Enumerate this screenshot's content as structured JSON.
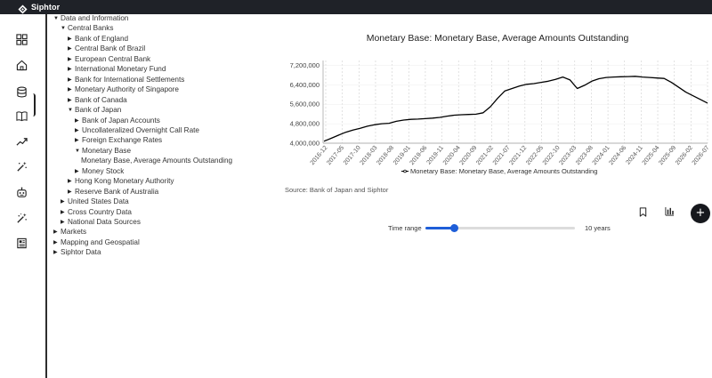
{
  "app": {
    "name": "Siphtor"
  },
  "sidebar": {
    "icons": [
      {
        "name": "dashboard-grid-icon"
      },
      {
        "name": "home-icon"
      },
      {
        "name": "database-icon",
        "active": true
      },
      {
        "name": "book-icon"
      },
      {
        "name": "trending-icon"
      },
      {
        "name": "magic-wand-icon"
      },
      {
        "name": "robot-icon"
      },
      {
        "name": "magic-wand-alt-icon"
      },
      {
        "name": "newspaper-icon"
      }
    ]
  },
  "tree": [
    {
      "label": "Data and Information",
      "level": 0,
      "expanded": true
    },
    {
      "label": "Central Banks",
      "level": 1,
      "expanded": true
    },
    {
      "label": "Bank of England",
      "level": 2,
      "expanded": false
    },
    {
      "label": "Central Bank of Brazil",
      "level": 2,
      "expanded": false
    },
    {
      "label": "European Central Bank",
      "level": 2,
      "expanded": false
    },
    {
      "label": "International Monetary Fund",
      "level": 2,
      "expanded": false
    },
    {
      "label": "Bank for International Settlements",
      "level": 2,
      "expanded": false
    },
    {
      "label": "Monetary Authority of Singapore",
      "level": 2,
      "expanded": false
    },
    {
      "label": "Bank of Canada",
      "level": 2,
      "expanded": false
    },
    {
      "label": "Bank of Japan",
      "level": 2,
      "expanded": true
    },
    {
      "label": "Bank of Japan Accounts",
      "level": 3,
      "expanded": false
    },
    {
      "label": "Uncollateralized Overnight Call Rate",
      "level": 3,
      "expanded": false
    },
    {
      "label": "Foreign Exchange Rates",
      "level": 3,
      "expanded": false
    },
    {
      "label": "Monetary Base",
      "level": 3,
      "expanded": true
    },
    {
      "label": "Monetary Base, Average Amounts Outstanding",
      "level": 4,
      "leaf": true
    },
    {
      "label": "Money Stock",
      "level": 3,
      "expanded": false
    },
    {
      "label": "Hong Kong Monetary Authority",
      "level": 2,
      "expanded": false
    },
    {
      "label": "Reserve Bank of Australia",
      "level": 2,
      "expanded": false
    },
    {
      "label": "United States Data",
      "level": 1,
      "expanded": false
    },
    {
      "label": "Cross Country Data",
      "level": 1,
      "expanded": false
    },
    {
      "label": "National Data Sources",
      "level": 1,
      "expanded": false
    },
    {
      "label": "Markets",
      "level": 0,
      "expanded": false
    },
    {
      "label": "Mapping and Geospatial",
      "level": 0,
      "expanded": false
    },
    {
      "label": "Siphtor Data",
      "level": 0,
      "expanded": false
    }
  ],
  "chart": {
    "source": "Source: Bank of Japan and Siphtor"
  },
  "chart_data": {
    "type": "line",
    "title": "Monetary Base: Monetary Base, Average Amounts Outstanding",
    "ylim": [
      4000000,
      7400000
    ],
    "yticks": [
      4000000,
      4800000,
      5600000,
      6400000,
      7200000
    ],
    "ytick_labels": [
      "4,000,000",
      "4,800,000",
      "5,600,000",
      "6,400,000",
      "7,200,000"
    ],
    "xticks": [
      "2016-12",
      "2017-05",
      "2017-10",
      "2018-03",
      "2018-08",
      "2019-01",
      "2019-06",
      "2019-11",
      "2020-04",
      "2020-09",
      "2021-02",
      "2021-07",
      "2021-12",
      "2022-05",
      "2022-10",
      "2023-03",
      "2023-08",
      "2024-01",
      "2024-06",
      "2024-11",
      "2025-04",
      "2025-09",
      "2026-02",
      "2026-07"
    ],
    "grid": true,
    "legend_position": "bottom",
    "line_color": "#000000",
    "series": [
      {
        "name": "Monetary Base: Monetary Base, Average Amounts Outstanding",
        "values": [
          4080000,
          4200000,
          4330000,
          4450000,
          4540000,
          4610000,
          4700000,
          4760000,
          4800000,
          4820000,
          4900000,
          4950000,
          4980000,
          4990000,
          5010000,
          5030000,
          5060000,
          5110000,
          5150000,
          5170000,
          5180000,
          5190000,
          5250000,
          5500000,
          5850000,
          6150000,
          6250000,
          6350000,
          6420000,
          6450000,
          6500000,
          6550000,
          6620000,
          6720000,
          6600000,
          6250000,
          6380000,
          6550000,
          6650000,
          6700000,
          6720000,
          6730000,
          6740000,
          6750000,
          6720000,
          6700000,
          6680000,
          6660000,
          6500000,
          6300000,
          6100000,
          5950000,
          5800000,
          5650000
        ]
      }
    ]
  },
  "controls": {
    "bookmark_icon": "bookmark-icon",
    "chart_type_icon": "bar-chart-icon",
    "add_icon_text": "+",
    "time_range_label": "Time range",
    "time_range_value": "10 years",
    "time_range_fraction": 0.19,
    "accent_color": "#1e5ed8"
  }
}
